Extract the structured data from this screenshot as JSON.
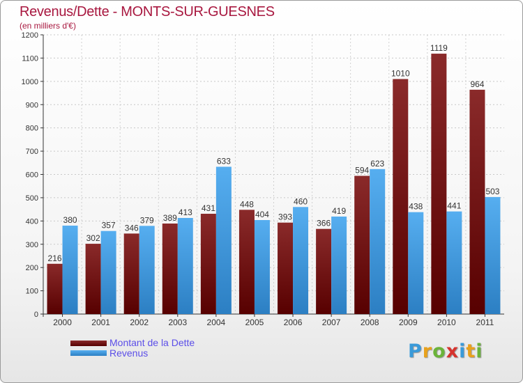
{
  "header": {
    "title": "Revenus/Dette - MONTS-SUR-GUESNES",
    "subtitle": "(en milliers d'€)"
  },
  "logo": {
    "text": "Proxiti",
    "letters": [
      {
        "ch": "P",
        "color": "#3a9ad9"
      },
      {
        "ch": "r",
        "color": "#e8a11c"
      },
      {
        "ch": "o",
        "color": "#6bb33a"
      },
      {
        "ch": "x",
        "color": "#d6332e"
      },
      {
        "ch": "i",
        "color": "#3a9ad9"
      },
      {
        "ch": "t",
        "color": "#e8a11c"
      },
      {
        "ch": "i",
        "color": "#6bb33a"
      }
    ]
  },
  "colors": {
    "title": "#a8173f",
    "dette": "#7a1a1a",
    "revenus": "#4aa3e6",
    "legend_text": "#5b4ee8"
  },
  "chart_data": {
    "type": "bar",
    "title": "Revenus/Dette - MONTS-SUR-GUESNES",
    "subtitle": "(en milliers d'€)",
    "xlabel": "",
    "ylabel": "",
    "ylim": [
      0,
      1200
    ],
    "yticks": [
      0,
      100,
      200,
      300,
      400,
      500,
      600,
      700,
      800,
      900,
      1000,
      1100,
      1200
    ],
    "grid": true,
    "legend_position": "bottom-left",
    "categories": [
      "2000",
      "2001",
      "2002",
      "2003",
      "2004",
      "2005",
      "2006",
      "2007",
      "2008",
      "2009",
      "2010",
      "2011"
    ],
    "series": [
      {
        "name": "Montant de la Dette",
        "values": [
          216,
          302,
          346,
          389,
          431,
          448,
          393,
          366,
          594,
          1010,
          1119,
          964
        ]
      },
      {
        "name": "Revenus",
        "values": [
          380,
          357,
          379,
          413,
          633,
          404,
          460,
          419,
          623,
          438,
          441,
          503
        ]
      }
    ]
  }
}
